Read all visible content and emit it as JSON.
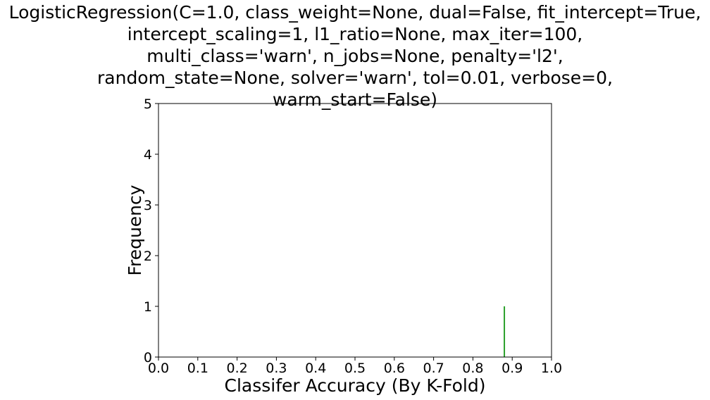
{
  "chart_data": {
    "type": "bar",
    "title_lines": [
      "LogisticRegression(C=1.0, class_weight=None, dual=False, fit_intercept=True,",
      "intercept_scaling=1, l1_ratio=None, max_iter=100,",
      "multi_class='warn', n_jobs=None, penalty='l2',",
      "random_state=None, solver='warn', tol=0.01, verbose=0,",
      "warm_start=False)"
    ],
    "xlabel": "Classifer Accuracy (By K-Fold)",
    "ylabel": "Frequency",
    "xlim": [
      0.0,
      1.0
    ],
    "ylim": [
      0,
      5
    ],
    "xticks": [
      "0.0",
      "0.1",
      "0.2",
      "0.3",
      "0.4",
      "0.5",
      "0.6",
      "0.7",
      "0.8",
      "0.9",
      "1.0"
    ],
    "yticks": [
      "0",
      "1",
      "2",
      "3",
      "4",
      "5"
    ],
    "grid": false,
    "series": [
      {
        "values": [
          {
            "x": 0.88,
            "y": 1
          }
        ],
        "color": "#2ca02c"
      }
    ]
  }
}
